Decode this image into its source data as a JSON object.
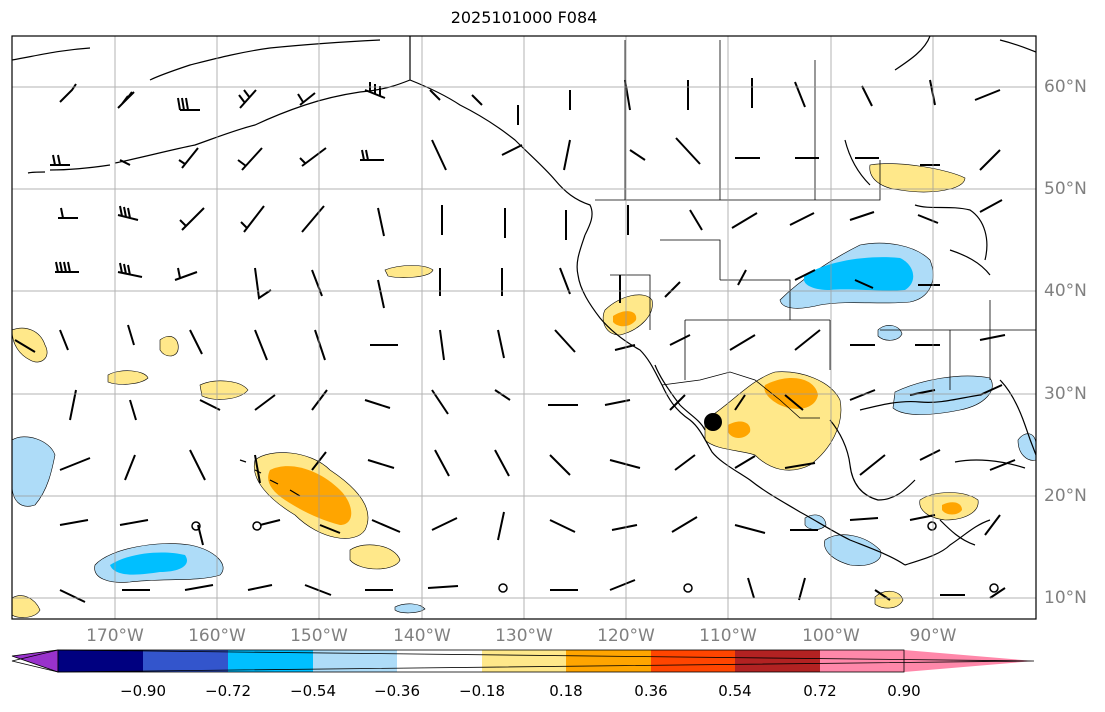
{
  "title": "2025101000 F084",
  "map": {
    "longitude_labels": [
      "170°W",
      "160°W",
      "150°W",
      "140°W",
      "130°W",
      "120°W",
      "110°W",
      "100°W",
      "90°W"
    ],
    "latitude_labels": [
      "60°N",
      "50°N",
      "40°N",
      "30°N",
      "20°N",
      "10°N"
    ]
  },
  "colorbar": {
    "tick_labels": [
      "−0.90",
      "−0.72",
      "−0.54",
      "−0.36",
      "−0.18",
      "0.18",
      "0.36",
      "0.54",
      "0.72",
      "0.90"
    ],
    "colors": [
      "#9932cc",
      "#000080",
      "#3355cc",
      "#00bfff",
      "#aedcf8",
      "#ffffff",
      "#ffe88a",
      "#ffa500",
      "#ff4500",
      "#b22222",
      "#ff88aa"
    ]
  },
  "colors": {
    "grid": "#9a9a9a",
    "coast": "#000000",
    "barb": "#000000"
  }
}
